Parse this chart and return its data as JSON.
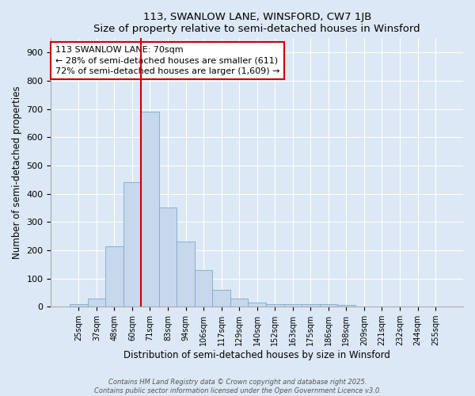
{
  "title": "113, SWANLOW LANE, WINSFORD, CW7 1JB",
  "subtitle": "Size of property relative to semi-detached houses in Winsford",
  "xlabel": "Distribution of semi-detached houses by size in Winsford",
  "ylabel": "Number of semi-detached properties",
  "bar_labels": [
    "25sqm",
    "37sqm",
    "48sqm",
    "60sqm",
    "71sqm",
    "83sqm",
    "94sqm",
    "106sqm",
    "117sqm",
    "129sqm",
    "140sqm",
    "152sqm",
    "163sqm",
    "175sqm",
    "186sqm",
    "198sqm",
    "209sqm",
    "221sqm",
    "232sqm",
    "244sqm",
    "255sqm"
  ],
  "bar_values": [
    10,
    28,
    215,
    440,
    690,
    350,
    230,
    130,
    60,
    28,
    15,
    10,
    10,
    10,
    8,
    5,
    2,
    1,
    0,
    0,
    0
  ],
  "bar_color": "#c8d8ec",
  "bar_edge_color": "#7aaac8",
  "vline_color": "#cc0000",
  "annotation_text": "113 SWANLOW LANE: 70sqm\n← 28% of semi-detached houses are smaller (611)\n72% of semi-detached houses are larger (1,609) →",
  "annotation_box_color": "#ffffff",
  "annotation_box_edge": "#cc0000",
  "footer_line1": "Contains HM Land Registry data © Crown copyright and database right 2025.",
  "footer_line2": "Contains public sector information licensed under the Open Government Licence v3.0.",
  "background_color": "#dce8f5",
  "plot_background": "#dce8f5",
  "ylim": [
    0,
    950
  ],
  "yticks": [
    0,
    100,
    200,
    300,
    400,
    500,
    600,
    700,
    800,
    900
  ]
}
